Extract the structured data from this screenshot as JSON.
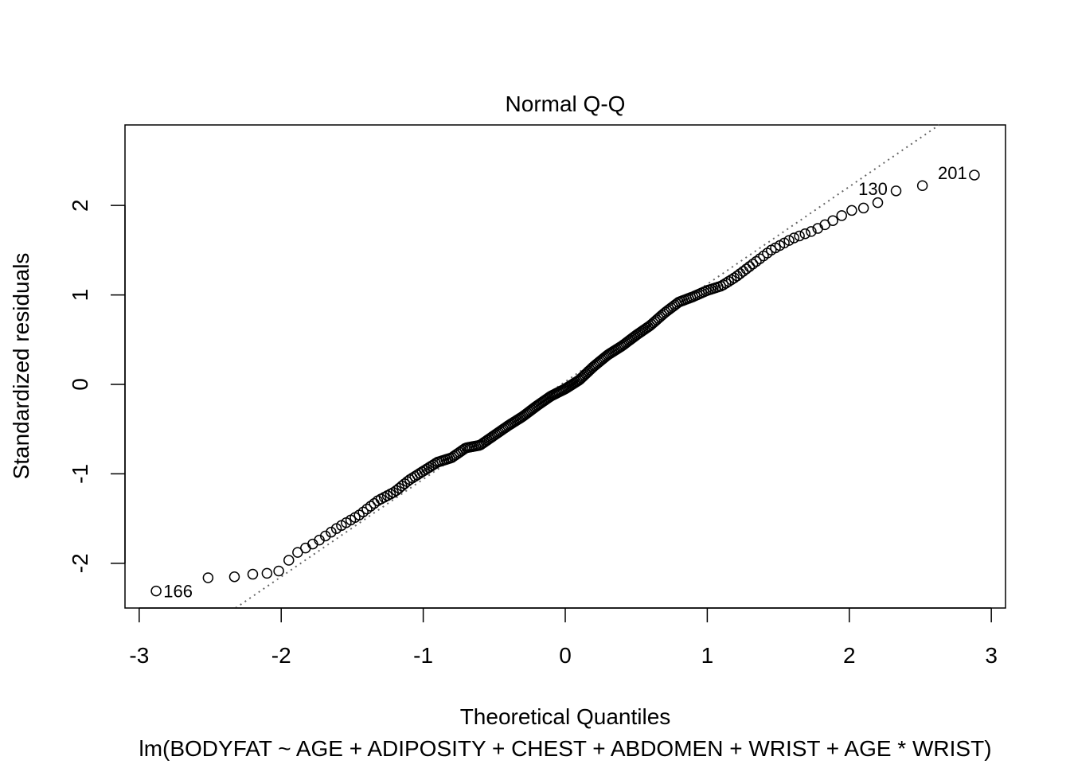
{
  "chart_data": {
    "type": "scatter",
    "title": "Normal Q-Q",
    "xlabel": "Theoretical Quantiles",
    "ylabel": "Standardized residuals",
    "subtitle": "lm(BODYFAT ~ AGE + ADIPOSITY + CHEST + ABDOMEN + WRIST + AGE * WRIST)",
    "xlim": [
      -3.1,
      3.1
    ],
    "ylim": [
      -2.5,
      2.9
    ],
    "xticks": [
      -3,
      -2,
      -1,
      0,
      1,
      2,
      3
    ],
    "yticks": [
      -2,
      -1,
      0,
      1,
      2
    ],
    "grid": false,
    "reference_line": {
      "style": "dotted",
      "intercept": 0.03,
      "slope": 1.09
    },
    "n_points": 252,
    "point_style": "open-circle",
    "labeled_points": [
      {
        "label": "166",
        "x": -2.88,
        "y": -2.31
      },
      {
        "label": "130",
        "x": 2.32,
        "y": 2.16
      },
      {
        "label": "201",
        "x": 2.88,
        "y": 2.34
      }
    ],
    "quantile_curve": {
      "x": [
        -2.88,
        -2.51,
        -2.32,
        -2.19,
        -2.08,
        -2.0,
        -1.92,
        -1.75,
        -1.6,
        -1.45,
        -1.32,
        -1.2,
        -1.1,
        -1.0,
        -0.9,
        -0.8,
        -0.7,
        -0.6,
        -0.5,
        -0.4,
        -0.3,
        -0.2,
        -0.1,
        0.0,
        0.1,
        0.2,
        0.3,
        0.4,
        0.5,
        0.6,
        0.7,
        0.8,
        0.9,
        1.0,
        1.1,
        1.2,
        1.3,
        1.45,
        1.6,
        1.75,
        1.92,
        2.0,
        2.08,
        2.19,
        2.32,
        2.51,
        2.88
      ],
      "y": [
        -2.31,
        -2.16,
        -2.15,
        -2.12,
        -2.11,
        -2.08,
        -1.91,
        -1.76,
        -1.6,
        -1.46,
        -1.3,
        -1.2,
        -1.07,
        -0.97,
        -0.87,
        -0.82,
        -0.71,
        -0.68,
        -0.57,
        -0.46,
        -0.36,
        -0.24,
        -0.13,
        -0.05,
        0.05,
        0.2,
        0.33,
        0.43,
        0.55,
        0.66,
        0.8,
        0.92,
        0.98,
        1.05,
        1.1,
        1.2,
        1.32,
        1.5,
        1.63,
        1.72,
        1.86,
        1.94,
        1.96,
        2.02,
        2.16,
        2.22,
        2.34
      ]
    }
  }
}
